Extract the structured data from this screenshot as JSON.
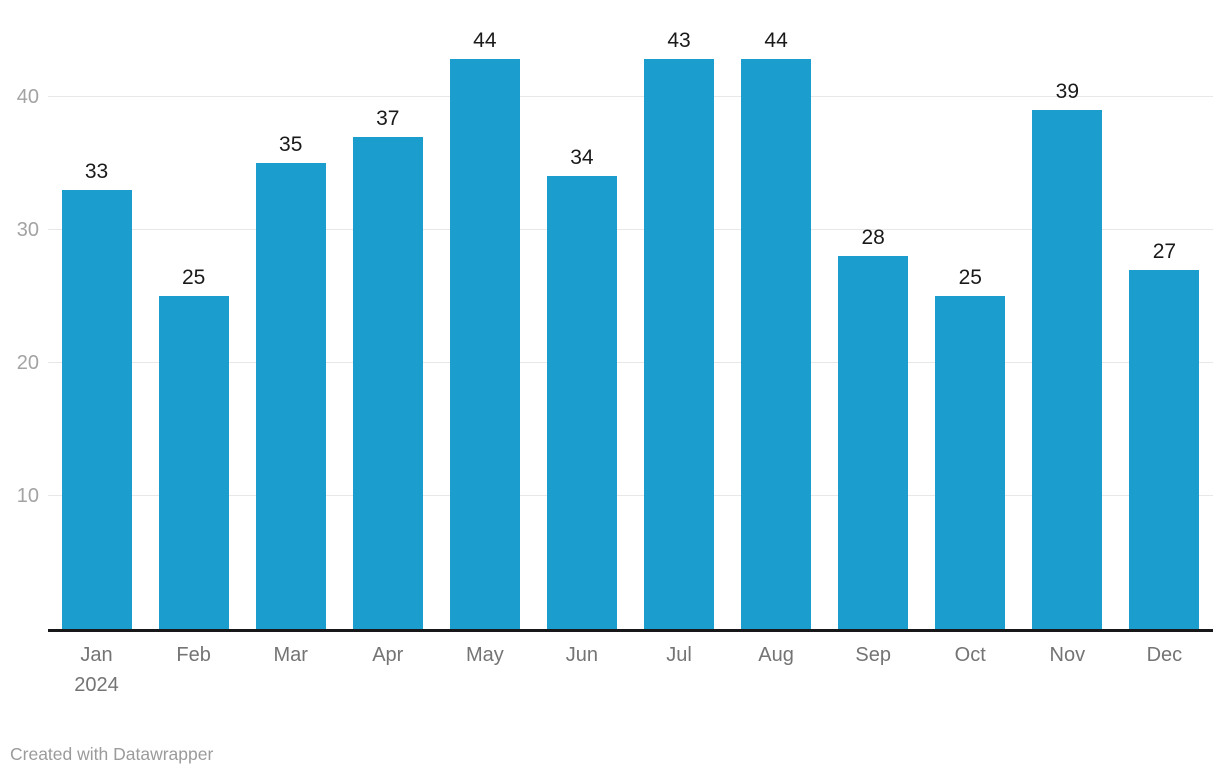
{
  "chart_data": {
    "type": "bar",
    "title": "",
    "xlabel": "",
    "ylabel": "",
    "categories": [
      "Jan",
      "Feb",
      "Mar",
      "Apr",
      "May",
      "Jun",
      "Jul",
      "Aug",
      "Sep",
      "Oct",
      "Nov",
      "Dec"
    ],
    "x_first_tick_sub_label": "2024",
    "values": [
      33,
      25,
      35,
      37,
      44,
      34,
      43,
      44,
      28,
      25,
      39,
      27
    ],
    "ylim": [
      0,
      45
    ],
    "yticks": [
      10,
      20,
      30,
      40
    ],
    "grid": "horizontal",
    "legend_position": "none",
    "value_labels_shown": true
  },
  "colors": {
    "bar": "#1b9ecd",
    "gridline": "#e8e8e8",
    "baseline": "#18181a",
    "y_tick_label": "#a3a3a3",
    "x_tick_label": "#747474",
    "value_label": "#1a1a1a",
    "credit_text": "#9b9b9b",
    "background": "#ffffff"
  },
  "footer": {
    "credit": "Created with Datawrapper"
  }
}
